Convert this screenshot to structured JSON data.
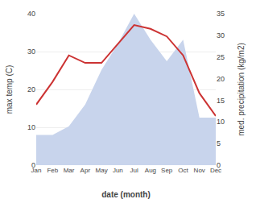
{
  "chart_data": {
    "type": "line",
    "xlabel": "date (month)",
    "ylabel": "max temp (C)",
    "y2label": "med. precipitation (kg/m2)",
    "categories": [
      "Jan",
      "Feb",
      "Mar",
      "Apr",
      "May",
      "Jun",
      "Jul",
      "Aug",
      "Sep",
      "Oct",
      "Nov",
      "Dec"
    ],
    "series": [
      {
        "type": "area",
        "axis": "y2",
        "color": "#c8d4ec",
        "values": [
          7,
          7,
          9,
          14,
          22,
          28,
          35,
          29,
          24,
          29,
          11,
          11
        ]
      },
      {
        "type": "line",
        "color": "#cc3333",
        "values": [
          16,
          22,
          29,
          27,
          27,
          32,
          37,
          36,
          34,
          29,
          19,
          13
        ]
      }
    ],
    "ylim": [
      0,
      40
    ],
    "yticks": [
      0,
      10,
      20,
      30,
      40
    ],
    "y2lim": [
      0,
      35
    ],
    "y2ticks": [
      0,
      5,
      10,
      15,
      20,
      25,
      30,
      35
    ],
    "grid": true
  }
}
